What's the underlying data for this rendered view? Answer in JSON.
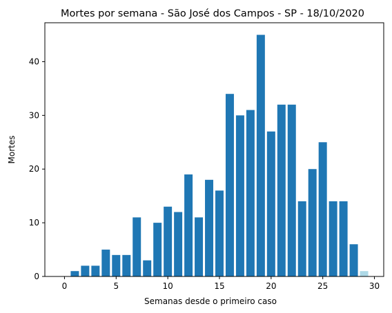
{
  "chart_data": {
    "type": "bar",
    "title": "Mortes por semana - São José dos Campos - SP - 18/10/2020",
    "xlabel": "Semanas desde o primeiro caso",
    "ylabel": "Mortes",
    "x": [
      0,
      1,
      2,
      3,
      4,
      5,
      6,
      7,
      8,
      9,
      10,
      11,
      12,
      13,
      14,
      15,
      16,
      17,
      18,
      19,
      20,
      21,
      22,
      23,
      24,
      25,
      26,
      27,
      28,
      29
    ],
    "values": [
      0,
      1,
      2,
      2,
      5,
      4,
      4,
      11,
      3,
      10,
      13,
      12,
      19,
      11,
      18,
      16,
      34,
      30,
      31,
      45,
      27,
      32,
      32,
      14,
      20,
      25,
      14,
      14,
      6,
      1
    ],
    "xlim": [
      -1.9,
      30.9
    ],
    "ylim": [
      0,
      47.25
    ],
    "xticks": [
      0,
      5,
      10,
      15,
      20,
      25,
      30
    ],
    "yticks": [
      0,
      10,
      20,
      30,
      40
    ],
    "bar_color": "#1f77b4",
    "partial_week_color": "#add8e6",
    "partial_week_index": 29,
    "grid": false,
    "legend": "none"
  }
}
